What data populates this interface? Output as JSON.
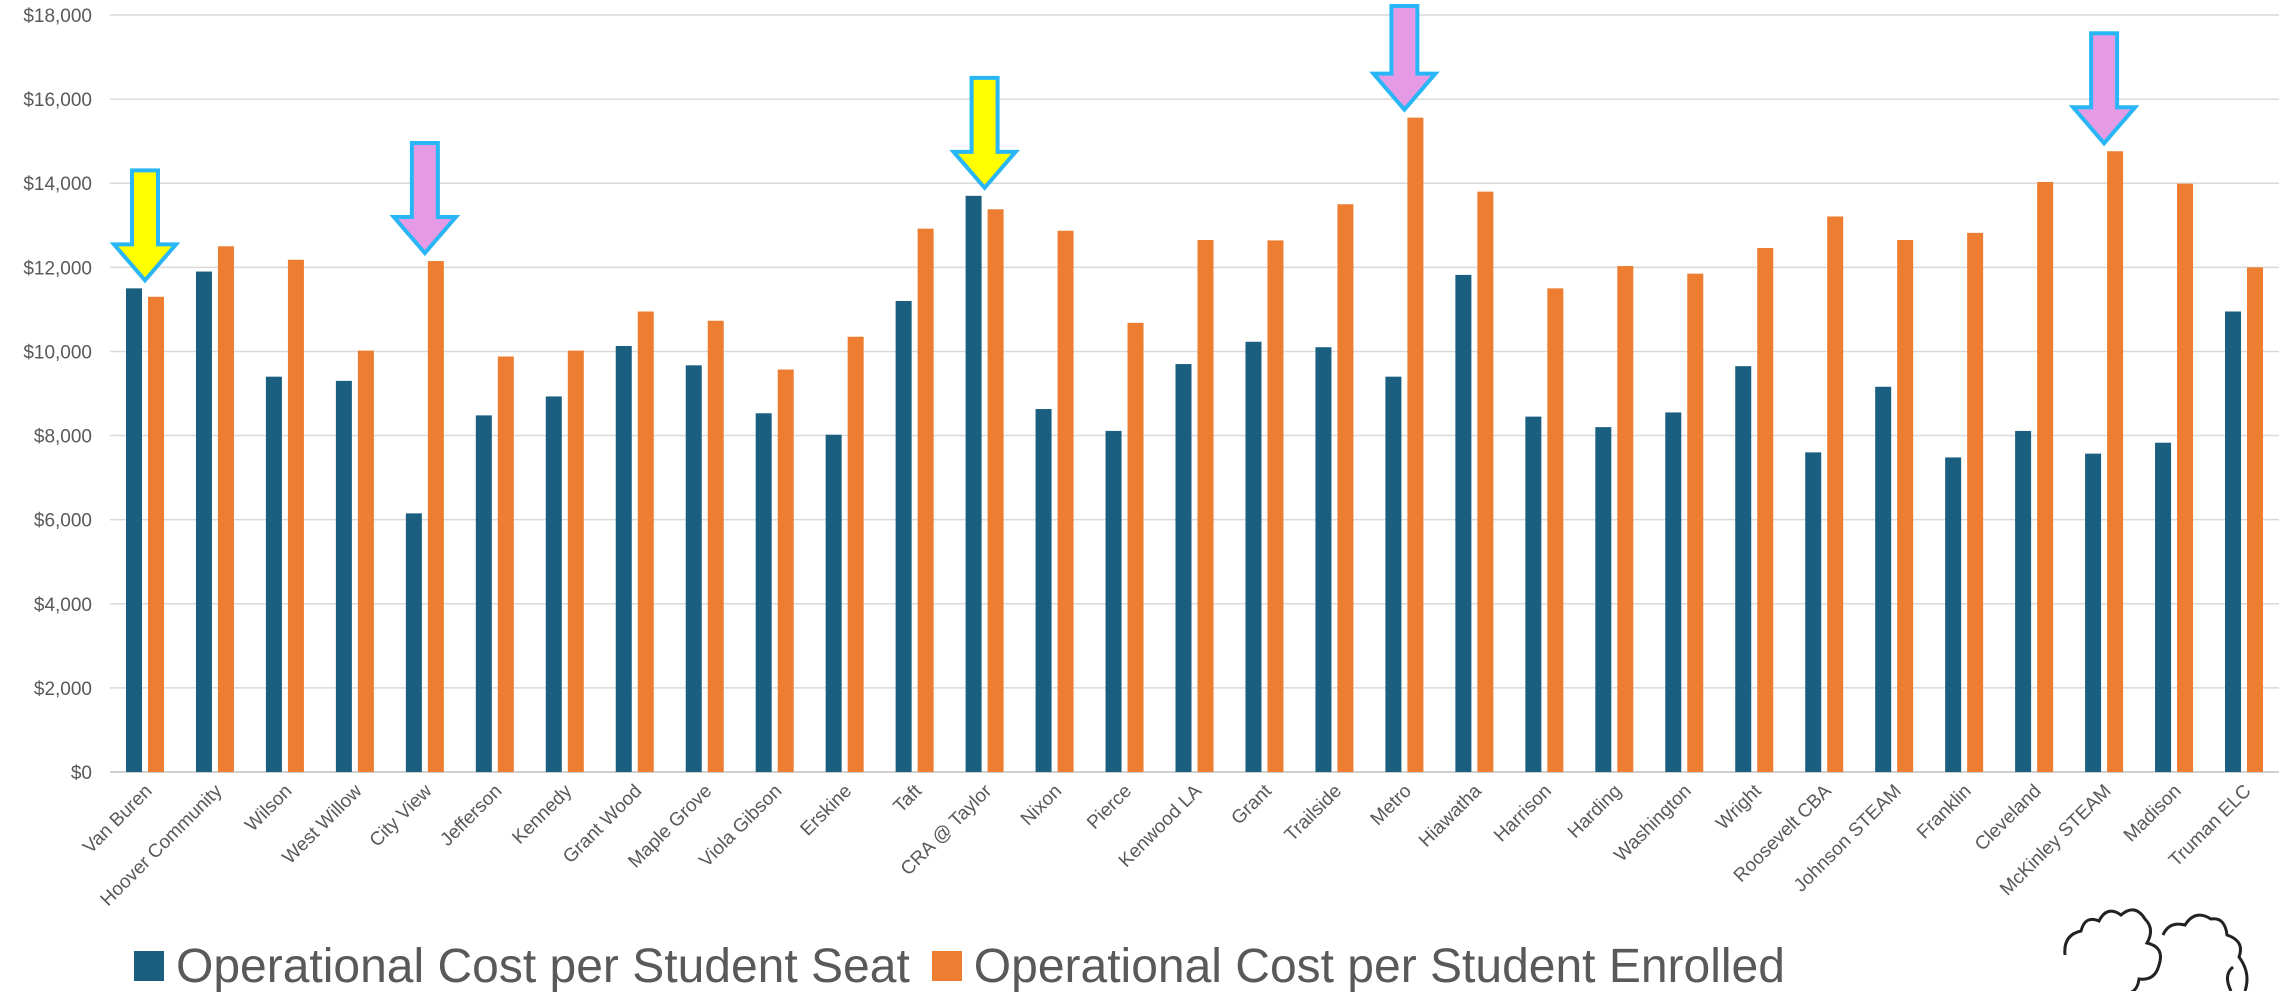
{
  "chart_data": {
    "type": "bar",
    "title": "",
    "xlabel": "",
    "ylabel": "",
    "ylim": [
      0,
      18000
    ],
    "yticks": [
      "$0",
      "$2,000",
      "$4,000",
      "$6,000",
      "$8,000",
      "$10,000",
      "$12,000",
      "$14,000",
      "$16,000",
      "$18,000"
    ],
    "grid": true,
    "legend_position": "bottom-left",
    "categories": [
      "Van Buren",
      "Hoover Community",
      "Wilson",
      "West Willow",
      "City View",
      "Jefferson",
      "Kennedy",
      "Grant Wood",
      "Maple Grove",
      "Viola Gibson",
      "Erskine",
      "Taft",
      "CRA @ Taylor",
      "Nixon",
      "Pierce",
      "Kenwood LA",
      "Grant",
      "Trailside",
      "Metro",
      "Hiawatha",
      "Harrison",
      "Harding",
      "Washington",
      "Wright",
      "Roosevelt CBA",
      "Johnson STEAM",
      "Franklin",
      "Cleveland",
      "McKinley STEAM",
      "Madison",
      "Truman ELC"
    ],
    "series": [
      {
        "name": "Operational Cost per Student Seat",
        "color": "#1a5e80",
        "values": [
          11500,
          11900,
          9400,
          9300,
          6150,
          8480,
          8930,
          10130,
          9670,
          8530,
          8020,
          11200,
          13700,
          8630,
          8110,
          9700,
          10230,
          10100,
          9400,
          11820,
          8450,
          8200,
          8550,
          9650,
          7600,
          9160,
          7480,
          8110,
          7570,
          7830,
          10950
        ]
      },
      {
        "name": "Operational Cost per Student Enrolled",
        "color": "#ed7d31",
        "values": [
          11300,
          12500,
          12180,
          10020,
          12150,
          9880,
          10020,
          10950,
          10730,
          9570,
          10350,
          12920,
          13380,
          12870,
          10680,
          12650,
          12640,
          13500,
          15560,
          13800,
          11500,
          12030,
          11850,
          12460,
          13210,
          12650,
          12820,
          14030,
          14760,
          13990,
          12000
        ]
      }
    ],
    "annotations": [
      {
        "type": "arrow",
        "category": "Van Buren",
        "color": "yellow",
        "fill": "#ffff00",
        "stroke": "#29b6f6"
      },
      {
        "type": "arrow",
        "category": "City View",
        "color": "pink",
        "fill": "#e49ae4",
        "stroke": "#29b6f6"
      },
      {
        "type": "arrow",
        "category": "CRA @ Taylor",
        "color": "yellow",
        "fill": "#ffff00",
        "stroke": "#29b6f6"
      },
      {
        "type": "arrow",
        "category": "Metro",
        "color": "pink",
        "fill": "#e49ae4",
        "stroke": "#29b6f6"
      },
      {
        "type": "arrow",
        "category": "McKinley STEAM",
        "color": "pink",
        "fill": "#e49ae4",
        "stroke": "#29b6f6"
      }
    ]
  },
  "decoration": {
    "icon": "puzzle-pieces-icon"
  }
}
